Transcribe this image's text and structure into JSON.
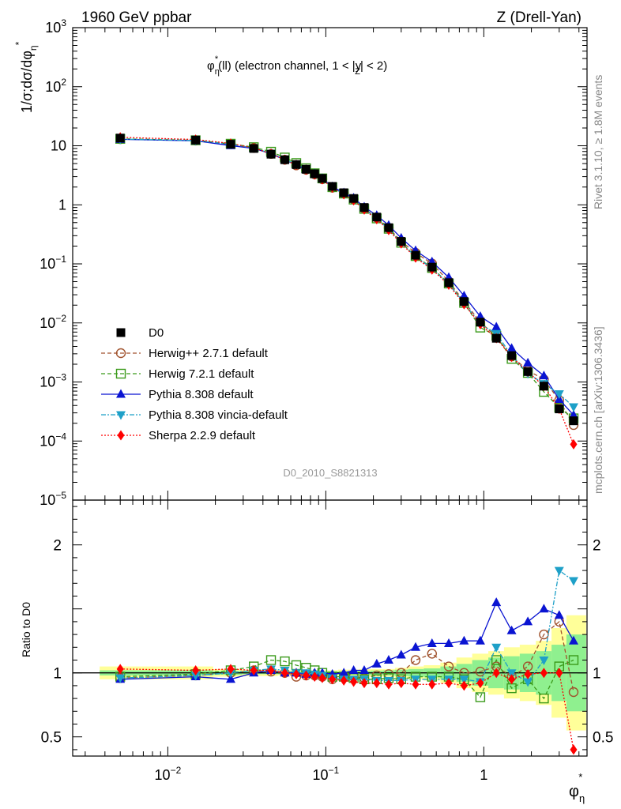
{
  "header": {
    "left": "1960 GeV ppbar",
    "right": "Z (Drell-Yan)"
  },
  "side_labels": {
    "rivet": "Rivet 3.1.10, ≥ 1.8M events",
    "mcplots": "mcplots.cern.ch [arXiv:1306.3436]"
  },
  "plot_title": {
    "phi": "φ",
    "sup": "*",
    "sub": "η",
    "text_a": "(ll) (electron channel, 1 < |",
    "y": "y",
    "ysub": "Z",
    "text_b": "| < 2)"
  },
  "analysis_id": "D0_2010_S8821313",
  "ylabel_main": {
    "prefix": "1/σ;dσ/dφ",
    "sup": "*",
    "sub": "η"
  },
  "ylabel_ratio": "Ratio to D0",
  "xlabel": {
    "phi": "φ",
    "sup": "*",
    "sub": "η"
  },
  "colors": {
    "D0": "#000000",
    "herwigpp": "#a0522d",
    "herwig7": "#3a9a1a",
    "pythia": "#0a14d2",
    "vincia": "#1ea0c8",
    "sherpa": "#ff0000",
    "band_outer": "#ffff99",
    "band_inner": "#8ff08f"
  },
  "chart_data": {
    "type": "line",
    "x_scale": "log",
    "main": {
      "y_scale": "log",
      "xlim": [
        0.0025,
        4.5
      ],
      "ylim": [
        1e-05,
        1000
      ],
      "yticks": [
        {
          "base": "10",
          "exp": "3",
          "value": 1000
        },
        {
          "base": "10",
          "exp": "2",
          "value": 100
        },
        {
          "base": "10",
          "exp": "",
          "value": 10
        },
        {
          "base": "1",
          "exp": "",
          "value": 1
        },
        {
          "base": "10",
          "exp": "−1",
          "value": 0.1
        },
        {
          "base": "10",
          "exp": "−2",
          "value": 0.01
        },
        {
          "base": "10",
          "exp": "−3",
          "value": 0.001
        },
        {
          "base": "10",
          "exp": "−4",
          "value": 0.0001
        },
        {
          "base": "10",
          "exp": "−5",
          "value": 1e-05
        }
      ]
    },
    "ratio": {
      "ylim": [
        0.35,
        2.35
      ],
      "yticks": [
        {
          "label": "2",
          "value": 2
        },
        {
          "label": "1",
          "value": 1
        },
        {
          "label": "0.5",
          "value": 0.5
        }
      ],
      "yticks_right": [
        {
          "label": "2",
          "value": 2
        },
        {
          "label": "1",
          "value": 1
        },
        {
          "label": "0.5",
          "value": 0.5
        }
      ]
    },
    "xticks": [
      {
        "base": "10",
        "exp": "−2",
        "value": 0.01
      },
      {
        "base": "10",
        "exp": "−1",
        "value": 0.1
      },
      {
        "base": "1",
        "exp": "",
        "value": 1
      }
    ],
    "x": [
      0.005,
      0.015,
      0.025,
      0.035,
      0.045,
      0.055,
      0.065,
      0.075,
      0.085,
      0.095,
      0.11,
      0.13,
      0.15,
      0.175,
      0.21,
      0.25,
      0.3,
      0.37,
      0.47,
      0.6,
      0.75,
      0.95,
      1.2,
      1.5,
      1.9,
      2.4,
      3.0,
      3.7
    ],
    "data": [
      13.5,
      12.5,
      10.6,
      9.0,
      7.2,
      5.8,
      4.8,
      4.0,
      3.35,
      2.8,
      2.05,
      1.6,
      1.28,
      0.9,
      0.62,
      0.41,
      0.24,
      0.14,
      0.088,
      0.048,
      0.023,
      0.0103,
      0.0055,
      0.0028,
      0.0015,
      0.00085,
      0.00035,
      0.00022
    ],
    "ratio_band_outer": [
      0.05,
      0.05,
      0.03,
      0.025,
      0.025,
      0.02,
      0.02,
      0.02,
      0.02,
      0.02,
      0.02,
      0.025,
      0.025,
      0.03,
      0.03,
      0.03,
      0.04,
      0.05,
      0.06,
      0.08,
      0.12,
      0.15,
      0.17,
      0.2,
      0.22,
      0.25,
      0.35,
      0.45
    ],
    "ratio_band_inner": [
      0.02,
      0.02,
      0.015,
      0.01,
      0.01,
      0.01,
      0.01,
      0.01,
      0.01,
      0.01,
      0.012,
      0.012,
      0.015,
      0.015,
      0.018,
      0.02,
      0.025,
      0.03,
      0.035,
      0.05,
      0.07,
      0.1,
      0.12,
      0.13,
      0.15,
      0.17,
      0.22,
      0.3
    ],
    "series": [
      {
        "name": "D0",
        "key": "D0",
        "marker": "square-filled",
        "dash": "",
        "ratio": [
          1,
          1,
          1,
          1,
          1,
          1,
          1,
          1,
          1,
          1,
          1,
          1,
          1,
          1,
          1,
          1,
          1,
          1,
          1,
          1,
          1,
          1,
          1,
          1,
          1,
          1,
          1,
          1
        ]
      },
      {
        "name": "Herwig++ 2.7.1 default",
        "key": "herwigpp",
        "marker": "circle-open",
        "dash": "5,3",
        "ratio": [
          0.96,
          0.98,
          1.0,
          1.02,
          1.01,
          1.0,
          0.97,
          0.98,
          0.98,
          0.97,
          0.95,
          0.97,
          0.97,
          0.96,
          0.98,
          0.99,
          1.0,
          1.1,
          1.15,
          1.05,
          1.0,
          1.01,
          1.05,
          0.97,
          1.05,
          1.3,
          1.4,
          0.85
        ]
      },
      {
        "name": "Herwig 7.2.1 default",
        "key": "herwig7",
        "marker": "square-open",
        "dash": "5,3",
        "ratio": [
          0.97,
          0.99,
          1.02,
          1.05,
          1.1,
          1.09,
          1.06,
          1.04,
          1.02,
          1.0,
          0.97,
          0.97,
          0.96,
          0.95,
          0.95,
          0.96,
          0.95,
          0.97,
          0.97,
          0.97,
          0.95,
          0.81,
          1.1,
          0.88,
          0.95,
          0.8,
          1.05,
          1.1
        ]
      },
      {
        "name": "Pythia 8.308 default",
        "key": "pythia",
        "marker": "triangle-up",
        "dash": "",
        "ratio": [
          0.95,
          0.97,
          0.95,
          1.0,
          1.02,
          1.0,
          1.0,
          0.99,
          1.0,
          1.0,
          0.99,
          1.0,
          1.02,
          1.02,
          1.07,
          1.1,
          1.14,
          1.2,
          1.23,
          1.23,
          1.25,
          1.25,
          1.55,
          1.33,
          1.4,
          1.5,
          1.45,
          1.25
        ]
      },
      {
        "name": "Pythia 8.308 vincia-default",
        "key": "vincia",
        "marker": "triangle-down",
        "dash": "6,2,2,2",
        "ratio": [
          0.96,
          0.98,
          1.0,
          1.02,
          1.03,
          1.02,
          1.0,
          1.0,
          0.99,
          0.98,
          0.96,
          0.95,
          0.95,
          0.95,
          0.94,
          0.94,
          0.94,
          0.95,
          0.95,
          0.95,
          0.95,
          0.93,
          1.2,
          1.0,
          0.93,
          1.1,
          1.8,
          1.72
        ]
      },
      {
        "name": "Sherpa 2.2.9 default",
        "key": "sherpa",
        "marker": "diamond",
        "dash": "2,2",
        "ratio": [
          1.03,
          1.02,
          1.03,
          1.02,
          1.02,
          1.0,
          0.99,
          0.98,
          0.97,
          0.96,
          0.95,
          0.94,
          0.93,
          0.92,
          0.92,
          0.91,
          0.92,
          0.91,
          0.91,
          0.92,
          0.9,
          0.92,
          1.0,
          0.95,
          0.99,
          1.0,
          1.0,
          0.4
        ]
      }
    ]
  }
}
